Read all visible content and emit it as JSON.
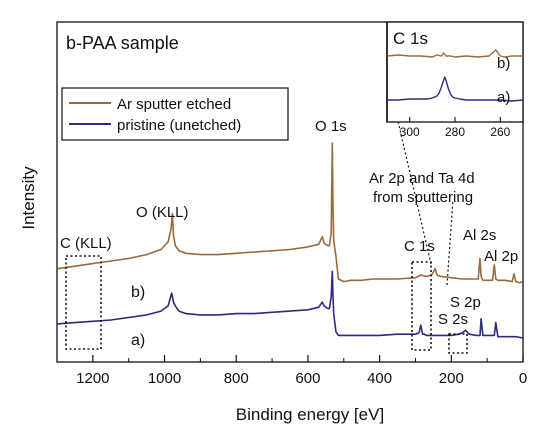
{
  "chart_data": {
    "type": "line",
    "title": "b-PAA sample",
    "xlabel": "Binding energy [eV]",
    "ylabel": "Intensity",
    "x_reversed": true,
    "xlim": [
      1300,
      0
    ],
    "x_ticks": [
      "1200",
      "1000",
      "800",
      "600",
      "400",
      "200",
      "0"
    ],
    "grid": false,
    "legend_position": "top-left",
    "legend": [
      "Ar sputter etched",
      "pristine (unetched)"
    ],
    "colors": {
      "etched": "#9a6a3c",
      "pristine": "#2e2b7d"
    },
    "series": [
      {
        "name": "Ar sputter etched",
        "curve_label": "b)",
        "x": [
          1300,
          1250,
          1200,
          1150,
          1100,
          1050,
          1010,
          990,
          982,
          978,
          975,
          970,
          960,
          940,
          900,
          850,
          800,
          750,
          700,
          650,
          600,
          570,
          560,
          555,
          545,
          540,
          535,
          532,
          530,
          528,
          522,
          515,
          500,
          480,
          450,
          420,
          400,
          350,
          300,
          285,
          270,
          255,
          245,
          240,
          230,
          200,
          170,
          150,
          125,
          120,
          117,
          112,
          100,
          85,
          80,
          76,
          70,
          50,
          30,
          25,
          20,
          10,
          0
        ],
        "y": [
          0.02,
          0.04,
          0.06,
          0.08,
          0.1,
          0.13,
          0.17,
          0.23,
          0.33,
          0.45,
          0.28,
          0.2,
          0.16,
          0.14,
          0.13,
          0.13,
          0.14,
          0.15,
          0.16,
          0.17,
          0.19,
          0.21,
          0.27,
          0.22,
          0.2,
          0.2,
          0.3,
          1.0,
          0.5,
          0.24,
          0.12,
          -0.06,
          -0.08,
          -0.07,
          -0.07,
          -0.06,
          -0.06,
          -0.06,
          -0.05,
          -0.03,
          -0.04,
          -0.03,
          0.02,
          -0.03,
          -0.04,
          -0.05,
          -0.06,
          -0.06,
          -0.06,
          0.1,
          -0.04,
          -0.07,
          -0.07,
          -0.07,
          0.05,
          -0.06,
          -0.07,
          -0.07,
          -0.08,
          -0.02,
          -0.08,
          -0.09,
          -0.08
        ]
      },
      {
        "name": "pristine (unetched)",
        "curve_label": "a)",
        "x": [
          1300,
          1250,
          1200,
          1150,
          1100,
          1050,
          1010,
          990,
          985,
          980,
          975,
          970,
          960,
          940,
          900,
          850,
          800,
          750,
          700,
          650,
          600,
          570,
          560,
          555,
          545,
          540,
          535,
          532,
          530,
          528,
          522,
          515,
          500,
          450,
          400,
          350,
          300,
          290,
          285,
          280,
          275,
          270,
          250,
          200,
          180,
          170,
          160,
          150,
          130,
          120,
          117,
          112,
          100,
          80,
          76,
          70,
          50,
          20,
          0
        ],
        "y": [
          -0.41,
          -0.4,
          -0.39,
          -0.38,
          -0.36,
          -0.34,
          -0.31,
          -0.27,
          -0.22,
          -0.17,
          -0.24,
          -0.27,
          -0.31,
          -0.33,
          -0.34,
          -0.34,
          -0.33,
          -0.33,
          -0.32,
          -0.31,
          -0.3,
          -0.28,
          -0.24,
          -0.27,
          -0.29,
          -0.29,
          -0.2,
          0.0,
          -0.2,
          -0.33,
          -0.47,
          -0.5,
          -0.5,
          -0.5,
          -0.5,
          -0.49,
          -0.49,
          -0.48,
          -0.42,
          -0.49,
          -0.49,
          -0.5,
          -0.5,
          -0.5,
          -0.49,
          -0.48,
          -0.46,
          -0.49,
          -0.5,
          -0.5,
          -0.37,
          -0.5,
          -0.5,
          -0.5,
          -0.4,
          -0.51,
          -0.51,
          -0.51,
          -0.52
        ]
      }
    ],
    "annotations": [
      {
        "text": "O 1s"
      },
      {
        "text": "O (KLL)"
      },
      {
        "text": "C (KLL)"
      },
      {
        "text": "Ar 2p and Ta 4d"
      },
      {
        "text": "from sputtering"
      },
      {
        "text": "C 1s"
      },
      {
        "text": "Al 2s"
      },
      {
        "text": "Al 2p"
      },
      {
        "text": "S 2p"
      },
      {
        "text": "S 2s"
      }
    ],
    "inset": {
      "title": "C 1s",
      "xlim": [
        310,
        250
      ],
      "x_reversed": true,
      "x_ticks": [
        "300",
        "280",
        "260"
      ],
      "series": [
        {
          "name": "Ar sputter etched",
          "curve_label": "b)",
          "x": [
            310,
            305,
            300,
            295,
            290,
            288,
            286,
            285,
            284,
            282,
            280,
            275,
            270,
            265,
            262,
            260,
            258,
            255,
            250
          ],
          "y": [
            0.66,
            0.67,
            0.66,
            0.66,
            0.65,
            0.67,
            0.66,
            0.69,
            0.66,
            0.66,
            0.65,
            0.66,
            0.65,
            0.66,
            0.72,
            0.66,
            0.65,
            0.66,
            0.66
          ]
        },
        {
          "name": "pristine (unetched)",
          "curve_label": "a)",
          "x": [
            310,
            305,
            300,
            295,
            292,
            290,
            288,
            287,
            286,
            285,
            284.5,
            284,
            283,
            282,
            281,
            280,
            278,
            275,
            270,
            265,
            260,
            255,
            250
          ],
          "y": [
            0.22,
            0.22,
            0.23,
            0.23,
            0.23,
            0.24,
            0.26,
            0.29,
            0.35,
            0.42,
            0.45,
            0.42,
            0.34,
            0.28,
            0.25,
            0.24,
            0.23,
            0.22,
            0.22,
            0.22,
            0.22,
            0.21,
            0.22
          ]
        }
      ]
    }
  }
}
